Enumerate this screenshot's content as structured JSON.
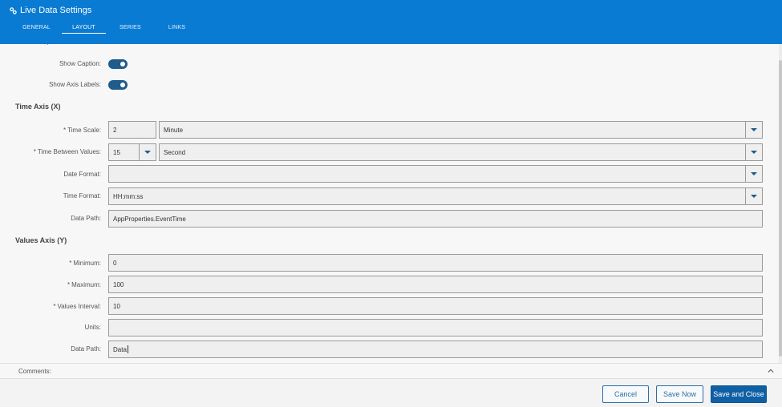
{
  "header": {
    "title": "Live Data Settings",
    "title_icon": "link-icon",
    "tabs": [
      {
        "label": "GENERAL",
        "active": false
      },
      {
        "label": "LAYOUT",
        "active": true
      },
      {
        "label": "SERIES",
        "active": false
      },
      {
        "label": "LINKS",
        "active": false
      }
    ]
  },
  "form": {
    "show_caption": {
      "label": "Show Caption:",
      "on": true
    },
    "show_axis_labels": {
      "label": "Show Axis Labels:",
      "on": true
    },
    "time_axis": {
      "title": "Time Axis (X)",
      "time_scale": {
        "required": "*",
        "label": "Time Scale:",
        "value": "2",
        "unit": "Minute"
      },
      "time_between_values": {
        "required": "*",
        "label": "Time Between Values:",
        "value": "15",
        "unit": "Second"
      },
      "date_format": {
        "label": "Date Format:",
        "value": ""
      },
      "time_format": {
        "label": "Time Format:",
        "value": "HH:mm:ss"
      },
      "data_path": {
        "label": "Data Path:",
        "value": "AppProperties.EventTime"
      }
    },
    "values_axis": {
      "title": "Values Axis (Y)",
      "minimum": {
        "required": "*",
        "label": "Minimum:",
        "value": "0"
      },
      "maximum": {
        "required": "*",
        "label": "Maximum:",
        "value": "100"
      },
      "values_interval": {
        "required": "*",
        "label": "Values Interval:",
        "value": "10"
      },
      "units": {
        "label": "Units:",
        "value": ""
      },
      "data_path": {
        "label": "Data Path:",
        "value": "Data"
      }
    }
  },
  "comments": {
    "label": "Comments:"
  },
  "footer": {
    "cancel": "Cancel",
    "save_now": "Save Now",
    "save_close": "Save and Close"
  },
  "colors": {
    "header_bg": "#0a7bd3",
    "toggle_on": "#1f5c8c",
    "primary_button": "#0f5fa5"
  }
}
